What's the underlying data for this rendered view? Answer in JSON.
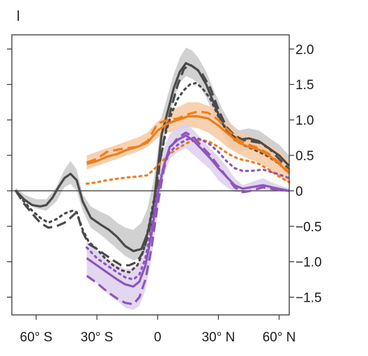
{
  "panel_label": "l",
  "chart_data": {
    "type": "line",
    "title": "",
    "xlabel": "",
    "ylabel": "",
    "xlim": [
      -72,
      65
    ],
    "ylim": [
      -1.75,
      2.2
    ],
    "grid": false,
    "legend": "none",
    "x_ticks": [
      {
        "value": -60,
        "label": "60° S"
      },
      {
        "value": -30,
        "label": "30° S"
      },
      {
        "value": 0,
        "label": "0"
      },
      {
        "value": 30,
        "label": "30° N"
      },
      {
        "value": 60,
        "label": "60° N"
      }
    ],
    "y_ticks": [
      {
        "value": 2.0,
        "label": "2.0"
      },
      {
        "value": 1.5,
        "label": "1.5"
      },
      {
        "value": 1.0,
        "label": "1.0"
      },
      {
        "value": 0.5,
        "label": "0.5"
      },
      {
        "value": 0,
        "label": "0"
      },
      {
        "value": -0.5,
        "label": "−0.5"
      },
      {
        "value": -1.0,
        "label": "−1.0"
      },
      {
        "value": -1.5,
        "label": "−1.5"
      }
    ],
    "zero_line": true,
    "bands": [
      {
        "color": "#cccccc",
        "opacity": 0.9,
        "points": [
          [
            -70,
            -0.04,
            0.04
          ],
          [
            -66,
            -0.15,
            -0.05
          ],
          [
            -60,
            -0.25,
            -0.12
          ],
          [
            -55,
            -0.28,
            -0.12
          ],
          [
            -50,
            -0.15,
            0.05
          ],
          [
            -46,
            0.05,
            0.3
          ],
          [
            -43,
            0.1,
            0.42
          ],
          [
            -40,
            0,
            0.3
          ],
          [
            -37,
            -0.28,
            -0.05
          ],
          [
            -33,
            -0.52,
            -0.22
          ],
          [
            -28,
            -0.62,
            -0.3
          ],
          [
            -24,
            -0.72,
            -0.35
          ],
          [
            -20,
            -0.82,
            -0.45
          ],
          [
            -16,
            -0.92,
            -0.52
          ],
          [
            -12,
            -0.98,
            -0.55
          ],
          [
            -8,
            -0.95,
            -0.45
          ],
          [
            -5,
            -0.72,
            -0.25
          ],
          [
            -2,
            -0.32,
            0.15
          ],
          [
            0,
            0.05,
            0.55
          ],
          [
            2,
            0.55,
            1.05
          ],
          [
            5,
            0.95,
            1.35
          ],
          [
            8,
            1.3,
            1.65
          ],
          [
            11,
            1.52,
            1.88
          ],
          [
            14,
            1.62,
            2.02
          ],
          [
            17,
            1.58,
            1.98
          ],
          [
            20,
            1.52,
            1.88
          ],
          [
            24,
            1.32,
            1.68
          ],
          [
            28,
            1.05,
            1.4
          ],
          [
            32,
            0.82,
            1.15
          ],
          [
            36,
            0.62,
            0.95
          ],
          [
            40,
            0.55,
            0.85
          ],
          [
            45,
            0.58,
            0.88
          ],
          [
            50,
            0.55,
            0.85
          ],
          [
            55,
            0.45,
            0.75
          ],
          [
            60,
            0.35,
            0.65
          ],
          [
            65,
            0.2,
            0.5
          ]
        ]
      },
      {
        "color": "#f7c9a2",
        "opacity": 0.85,
        "points": [
          [
            -35,
            0.3,
            0.5
          ],
          [
            -30,
            0.35,
            0.55
          ],
          [
            -25,
            0.4,
            0.6
          ],
          [
            -20,
            0.45,
            0.65
          ],
          [
            -15,
            0.5,
            0.7
          ],
          [
            -10,
            0.55,
            0.75
          ],
          [
            -5,
            0.62,
            0.82
          ],
          [
            0,
            0.75,
            0.98
          ],
          [
            5,
            0.82,
            1.1
          ],
          [
            10,
            0.85,
            1.18
          ],
          [
            15,
            0.9,
            1.25
          ],
          [
            20,
            0.88,
            1.25
          ],
          [
            25,
            0.82,
            1.2
          ],
          [
            30,
            0.72,
            1.1
          ],
          [
            35,
            0.6,
            0.95
          ],
          [
            40,
            0.52,
            0.82
          ],
          [
            45,
            0.45,
            0.78
          ],
          [
            50,
            0.4,
            0.72
          ],
          [
            55,
            0.32,
            0.65
          ],
          [
            60,
            0.2,
            0.55
          ],
          [
            65,
            0.1,
            0.45
          ]
        ]
      },
      {
        "color": "#ddd0ec",
        "opacity": 0.85,
        "points": [
          [
            -35,
            -1.2,
            -0.7
          ],
          [
            -30,
            -1.3,
            -0.85
          ],
          [
            -25,
            -1.45,
            -0.95
          ],
          [
            -20,
            -1.55,
            -1.05
          ],
          [
            -16,
            -1.65,
            -1.1
          ],
          [
            -12,
            -1.68,
            -1.1
          ],
          [
            -9,
            -1.62,
            -0.98
          ],
          [
            -6,
            -1.4,
            -0.7
          ],
          [
            -3,
            -0.95,
            -0.3
          ],
          [
            0,
            -0.3,
            0.2
          ],
          [
            3,
            0.2,
            0.6
          ],
          [
            6,
            0.45,
            0.8
          ],
          [
            10,
            0.55,
            0.9
          ],
          [
            14,
            0.6,
            0.95
          ],
          [
            18,
            0.5,
            0.85
          ],
          [
            22,
            0.4,
            0.72
          ],
          [
            26,
            0.3,
            0.6
          ],
          [
            30,
            0.15,
            0.48
          ],
          [
            34,
            0.05,
            0.35
          ],
          [
            38,
            -0.02,
            0.18
          ],
          [
            42,
            -0.02,
            0.08
          ],
          [
            46,
            -0.01,
            0.12
          ],
          [
            52,
            0.02,
            0.18
          ],
          [
            58,
            0,
            0.1
          ],
          [
            65,
            -0.02,
            0.03
          ]
        ]
      }
    ],
    "series": [
      {
        "color": "#4a4a4a",
        "dash": "solid",
        "width": 3.2,
        "x": [
          -70,
          -66,
          -62,
          -58,
          -55,
          -52,
          -49,
          -46,
          -43,
          -40,
          -37,
          -33,
          -28,
          -24,
          -20,
          -16,
          -12,
          -8,
          -5,
          -2,
          0,
          2,
          5,
          8,
          11,
          14,
          17,
          20,
          24,
          28,
          32,
          36,
          40,
          45,
          50,
          55,
          60,
          65
        ],
        "y": [
          0,
          -0.12,
          -0.2,
          -0.22,
          -0.2,
          -0.1,
          0.05,
          0.18,
          0.24,
          0.15,
          -0.15,
          -0.38,
          -0.48,
          -0.55,
          -0.65,
          -0.78,
          -0.85,
          -0.82,
          -0.6,
          -0.2,
          0.3,
          0.8,
          1.12,
          1.45,
          1.68,
          1.8,
          1.76,
          1.7,
          1.5,
          1.22,
          0.95,
          0.8,
          0.72,
          0.74,
          0.7,
          0.6,
          0.5,
          0.35
        ]
      },
      {
        "color": "#4a4a4a",
        "dash": "long",
        "width": 3.2,
        "x": [
          -70,
          -66,
          -62,
          -58,
          -54,
          -50,
          -46,
          -43,
          -40,
          -37,
          -34,
          -30,
          -26,
          -22,
          -18,
          -14,
          -10,
          -7,
          -4,
          -1,
          1,
          4,
          7,
          10,
          13,
          16,
          19,
          22,
          26,
          30,
          34,
          38,
          42,
          46,
          50,
          55,
          60,
          65
        ],
        "y": [
          0,
          -0.18,
          -0.32,
          -0.45,
          -0.52,
          -0.5,
          -0.45,
          -0.38,
          -0.3,
          -0.58,
          -0.75,
          -0.82,
          -0.9,
          -0.98,
          -1.05,
          -1.05,
          -1.0,
          -0.85,
          -0.55,
          -0.2,
          0.4,
          0.85,
          1.2,
          1.5,
          1.72,
          1.78,
          1.72,
          1.65,
          1.45,
          1.15,
          0.9,
          0.78,
          0.72,
          0.7,
          0.68,
          0.6,
          0.45,
          0.3
        ]
      },
      {
        "color": "#4a4a4a",
        "dash": "dot",
        "width": 3.2,
        "x": [
          -70,
          -66,
          -62,
          -58,
          -54,
          -50,
          -46,
          -42,
          -40,
          -37,
          -34,
          -30,
          -26,
          -22,
          -18,
          -14,
          -10,
          -7,
          -4,
          -1,
          1,
          4,
          7,
          10,
          13,
          16,
          19,
          22,
          26,
          30,
          34,
          38,
          42,
          46,
          50,
          55,
          60,
          65
        ],
        "y": [
          0,
          -0.15,
          -0.28,
          -0.38,
          -0.45,
          -0.4,
          -0.32,
          -0.28,
          -0.3,
          -0.55,
          -0.72,
          -0.82,
          -0.95,
          -1.05,
          -1.12,
          -1.15,
          -1.05,
          -0.85,
          -0.45,
          0.0,
          0.4,
          0.82,
          1.1,
          1.3,
          1.42,
          1.5,
          1.52,
          1.45,
          1.3,
          1.05,
          0.85,
          0.72,
          0.65,
          0.6,
          0.55,
          0.48,
          0.38,
          0.25
        ]
      },
      {
        "color": "#f07d1a",
        "dash": "solid",
        "width": 3.2,
        "x": [
          -35,
          -30,
          -25,
          -20,
          -15,
          -10,
          -5,
          0,
          5,
          10,
          15,
          20,
          25,
          30,
          35,
          40,
          45,
          50,
          55,
          60,
          65
        ],
        "y": [
          0.38,
          0.42,
          0.48,
          0.52,
          0.58,
          0.62,
          0.68,
          0.85,
          0.95,
          1.0,
          1.05,
          1.05,
          1.02,
          0.92,
          0.8,
          0.68,
          0.62,
          0.58,
          0.5,
          0.38,
          0.25
        ]
      },
      {
        "color": "#f07d1a",
        "dash": "long",
        "width": 3.2,
        "x": [
          -35,
          -30,
          -25,
          -20,
          -15,
          -10,
          -5,
          0,
          5,
          10,
          15,
          20,
          25,
          30,
          35,
          40,
          45,
          50,
          55,
          60,
          65
        ],
        "y": [
          0.4,
          0.45,
          0.55,
          0.58,
          0.6,
          0.62,
          0.7,
          0.95,
          1.0,
          1.02,
          1.08,
          1.12,
          1.1,
          1.0,
          0.85,
          0.72,
          0.65,
          0.6,
          0.52,
          0.4,
          0.28
        ]
      },
      {
        "color": "#f07d1a",
        "dash": "dot",
        "width": 3.2,
        "x": [
          -35,
          -30,
          -25,
          -20,
          -15,
          -10,
          -5,
          0,
          5,
          10,
          15,
          20,
          25,
          30,
          35,
          40,
          45,
          50,
          55,
          60,
          65
        ],
        "y": [
          0.1,
          0.12,
          0.15,
          0.17,
          0.19,
          0.2,
          0.22,
          0.35,
          0.5,
          0.6,
          0.68,
          0.72,
          0.7,
          0.62,
          0.52,
          0.45,
          0.42,
          0.38,
          0.3,
          0.2,
          0.12
        ]
      },
      {
        "color": "#8e55bd",
        "dash": "solid",
        "width": 3.2,
        "x": [
          -35,
          -30,
          -25,
          -20,
          -16,
          -12,
          -9,
          -6,
          -3,
          0,
          3,
          6,
          10,
          14,
          18,
          22,
          26,
          30,
          34,
          38,
          42,
          46,
          52,
          58,
          65
        ],
        "y": [
          -0.95,
          -1.05,
          -1.15,
          -1.25,
          -1.32,
          -1.35,
          -1.28,
          -1.05,
          -0.6,
          -0.05,
          0.35,
          0.62,
          0.72,
          0.78,
          0.7,
          0.58,
          0.46,
          0.32,
          0.2,
          0.08,
          0.03,
          0.05,
          0.08,
          0.04,
          0.0
        ]
      },
      {
        "color": "#8e55bd",
        "dash": "long",
        "width": 3.2,
        "x": [
          -35,
          -30,
          -25,
          -20,
          -16,
          -12,
          -9,
          -6,
          -3,
          0,
          3,
          6,
          10,
          14,
          18,
          22,
          26,
          30,
          34,
          38,
          42,
          46,
          52,
          58,
          65
        ],
        "y": [
          -1.2,
          -1.3,
          -1.42,
          -1.52,
          -1.58,
          -1.6,
          -1.5,
          -1.25,
          -0.8,
          -0.2,
          0.3,
          0.6,
          0.75,
          0.82,
          0.75,
          0.62,
          0.5,
          0.35,
          0.2,
          0.05,
          -0.02,
          0.0,
          0.05,
          0.02,
          0.0
        ]
      },
      {
        "color": "#8e55bd",
        "dash": "dot",
        "width": 3.2,
        "x": [
          -35,
          -30,
          -25,
          -20,
          -16,
          -12,
          -9,
          -6,
          -3,
          0,
          3,
          6,
          10,
          14,
          18,
          22,
          26,
          30,
          34,
          38,
          42,
          46,
          52,
          58,
          65
        ],
        "y": [
          -0.8,
          -0.95,
          -1.05,
          -1.15,
          -1.22,
          -1.25,
          -1.18,
          -0.95,
          -0.5,
          0.0,
          0.35,
          0.55,
          0.65,
          0.72,
          0.75,
          0.72,
          0.65,
          0.55,
          0.42,
          0.32,
          0.28,
          0.28,
          0.3,
          0.25,
          0.18
        ]
      }
    ]
  }
}
